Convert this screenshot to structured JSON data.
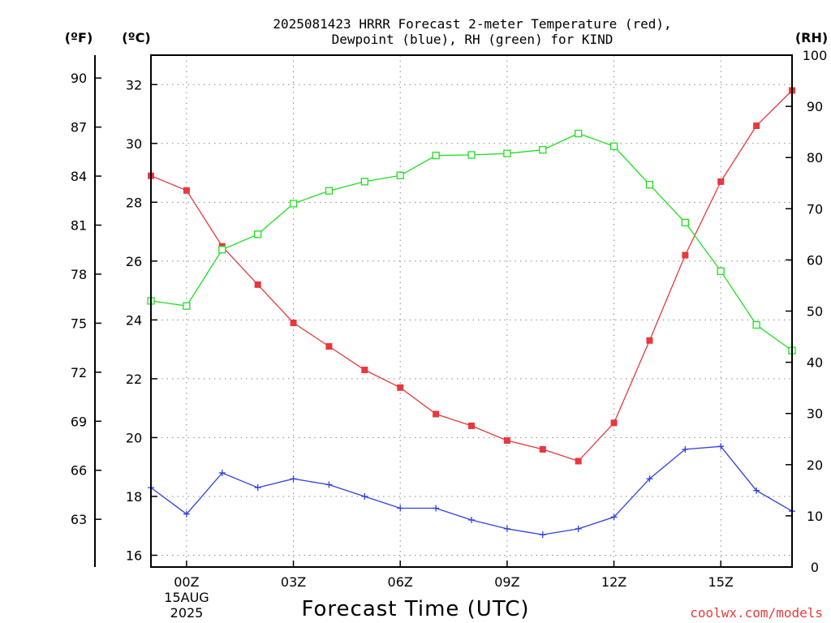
{
  "chart_data": {
    "type": "line",
    "title_lines": [
      "2025081423 HRRR Forecast 2-meter Temperature (red),",
      "Dewpoint (blue), RH (green) for KIND"
    ],
    "xlabel": "Forecast Time (UTC)",
    "credit": "coolwx.com/models",
    "date_lines": [
      "15AUG",
      "2025"
    ],
    "unit_labels": {
      "fahrenheit": "(ºF)",
      "celsius": "(ºC)",
      "rh": "(RH)"
    },
    "x_ticks": [
      "00Z",
      "03Z",
      "06Z",
      "09Z",
      "12Z",
      "15Z"
    ],
    "x_tick_hours": [
      0,
      3,
      6,
      9,
      12,
      15
    ],
    "x": [
      -1,
      0,
      1,
      2,
      3,
      4,
      5,
      6,
      7,
      8,
      9,
      10,
      11,
      12,
      13,
      14,
      15,
      16,
      17
    ],
    "xlim": [
      -1,
      17
    ],
    "celsius_ticks": [
      "16",
      "18",
      "20",
      "22",
      "24",
      "26",
      "28",
      "30",
      "32"
    ],
    "fahrenheit_ticks": [
      "63",
      "66",
      "69",
      "72",
      "75",
      "78",
      "81",
      "84",
      "87",
      "90"
    ],
    "rh_ticks": [
      "0",
      "10",
      "20",
      "30",
      "40",
      "50",
      "60",
      "70",
      "80",
      "90",
      "100"
    ],
    "ylim_celsius": [
      15.6,
      33
    ],
    "ylim_rh": [
      0,
      100
    ],
    "grid": true,
    "series": [
      {
        "name": "Temperature",
        "axis": "celsius",
        "color": "#e8383c",
        "marker": "filled-square",
        "values": [
          28.9,
          28.4,
          26.5,
          25.2,
          23.9,
          23.1,
          22.3,
          21.7,
          20.8,
          20.4,
          19.9,
          19.6,
          19.2,
          20.5,
          23.3,
          26.2,
          28.7,
          30.6,
          31.8
        ]
      },
      {
        "name": "Dewpoint",
        "axis": "celsius",
        "color": "#3040e0",
        "marker": "plus",
        "values": [
          18.3,
          17.4,
          18.8,
          18.3,
          18.6,
          18.4,
          18.0,
          17.6,
          17.6,
          17.2,
          16.9,
          16.7,
          16.9,
          17.3,
          18.6,
          19.6,
          19.7,
          18.2,
          17.5
        ]
      },
      {
        "name": "RH",
        "axis": "rh",
        "color": "#22dd22",
        "marker": "open-square",
        "values": [
          52,
          51,
          62,
          65,
          71,
          73.5,
          75.3,
          76.5,
          80.4,
          80.5,
          80.8,
          81.5,
          84.7,
          82.2,
          74.7,
          67.3,
          57.8,
          47.3,
          42.3
        ]
      }
    ]
  }
}
